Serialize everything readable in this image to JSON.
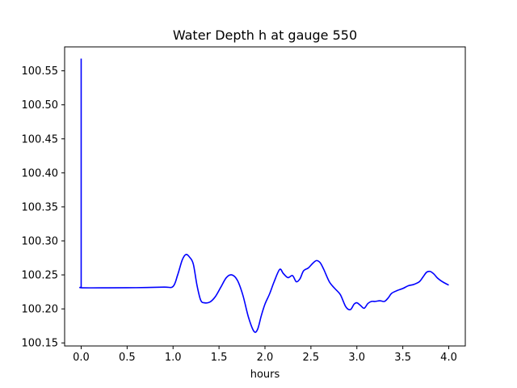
{
  "chart_data": {
    "type": "line",
    "title": "Water Depth h at gauge 550",
    "xlabel": "hours",
    "ylabel": "",
    "xlim": [
      -0.18,
      4.18
    ],
    "ylim": [
      100.1455,
      100.5852
    ],
    "xticks": [
      0.0,
      0.5,
      1.0,
      1.5,
      2.0,
      2.5,
      3.0,
      3.5,
      4.0
    ],
    "xtick_labels": [
      "0.0",
      "0.5",
      "1.0",
      "1.5",
      "2.0",
      "2.5",
      "3.0",
      "3.5",
      "4.0"
    ],
    "yticks": [
      100.15,
      100.2,
      100.25,
      100.3,
      100.35,
      100.4,
      100.45,
      100.5,
      100.55
    ],
    "ytick_labels": [
      "100.15",
      "100.20",
      "100.25",
      "100.30",
      "100.35",
      "100.40",
      "100.45",
      "100.50",
      "100.55"
    ],
    "grid": false,
    "legend": "none",
    "series": [
      {
        "color": "#0000ff",
        "x": [
          0.0,
          0.0,
          0.01,
          0.3,
          0.6,
          0.9,
          1.0,
          1.05,
          1.1,
          1.14,
          1.18,
          1.22,
          1.26,
          1.3,
          1.34,
          1.4,
          1.46,
          1.52,
          1.58,
          1.64,
          1.7,
          1.76,
          1.82,
          1.88,
          1.92,
          1.96,
          2.0,
          2.05,
          2.1,
          2.16,
          2.2,
          2.25,
          2.3,
          2.34,
          2.38,
          2.42,
          2.47,
          2.52,
          2.56,
          2.6,
          2.64,
          2.7,
          2.76,
          2.82,
          2.88,
          2.93,
          2.97,
          3.0,
          3.04,
          3.08,
          3.12,
          3.16,
          3.2,
          3.25,
          3.3,
          3.34,
          3.38,
          3.44,
          3.5,
          3.56,
          3.62,
          3.68,
          3.72,
          3.76,
          3.8,
          3.84,
          3.88,
          3.93,
          3.97,
          4.0
        ],
        "y": [
          100.568,
          100.232,
          100.231,
          100.231,
          100.2312,
          100.232,
          100.233,
          100.25,
          100.272,
          100.28,
          100.276,
          100.266,
          100.235,
          100.213,
          100.209,
          100.21,
          100.218,
          100.232,
          100.246,
          100.25,
          100.242,
          100.22,
          100.188,
          100.167,
          100.17,
          100.19,
          100.207,
          100.222,
          100.24,
          100.258,
          100.252,
          100.246,
          100.249,
          100.24,
          100.244,
          100.256,
          100.26,
          100.267,
          100.271,
          100.268,
          100.258,
          100.24,
          100.23,
          100.221,
          100.203,
          100.199,
          100.207,
          100.209,
          100.205,
          100.201,
          100.208,
          100.211,
          100.211,
          100.212,
          100.211,
          100.216,
          100.223,
          100.227,
          100.23,
          100.234,
          100.236,
          100.24,
          100.247,
          100.254,
          100.255,
          100.251,
          100.245,
          100.24,
          100.237,
          100.235
        ]
      }
    ]
  }
}
